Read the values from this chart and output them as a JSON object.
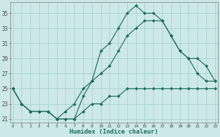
{
  "xlabel": "Humidex (Indice chaleur)",
  "background_color": "#cce8e8",
  "grid_color": "#aacfcf",
  "line_color": "#1a6b5a",
  "x": [
    0,
    1,
    2,
    3,
    4,
    5,
    6,
    7,
    8,
    9,
    10,
    11,
    12,
    13,
    14,
    15,
    16,
    17,
    18,
    19,
    20,
    21,
    22,
    23
  ],
  "series1": [
    25,
    23,
    22,
    22,
    22,
    21,
    21,
    21,
    24,
    26,
    30,
    31,
    33,
    35,
    36,
    35,
    35,
    34,
    32,
    30,
    29,
    27,
    26,
    26
  ],
  "series2": [
    25,
    23,
    22,
    22,
    22,
    21,
    22,
    23,
    25,
    26,
    27,
    28,
    30,
    32,
    33,
    34,
    34,
    34,
    32,
    30,
    29,
    29,
    28,
    26
  ],
  "series3": [
    25,
    23,
    22,
    22,
    22,
    21,
    21,
    21,
    22,
    23,
    23,
    24,
    24,
    25,
    25,
    25,
    25,
    25,
    25,
    25,
    25,
    25,
    25,
    25
  ],
  "ylim": [
    20.5,
    36.5
  ],
  "yticks": [
    21,
    23,
    25,
    27,
    29,
    31,
    33,
    35
  ],
  "xlim": [
    -0.3,
    23.3
  ]
}
